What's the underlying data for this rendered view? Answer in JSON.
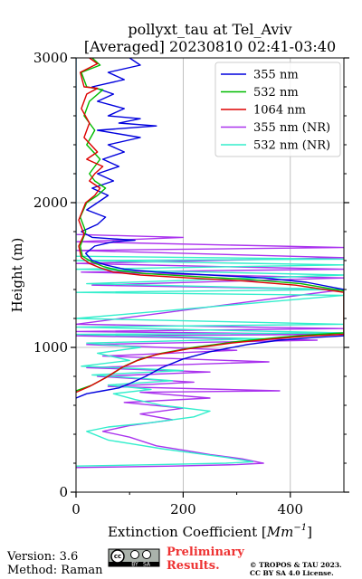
{
  "chart_data": {
    "type": "line",
    "title_line1": "pollyxt_tau at Tel_Aviv",
    "title_line2": "[Averaged] 20230810 02:41-03:40",
    "xlabel_text": "Extinction Coefficient [",
    "xlabel_unit": "Mm",
    "xlabel_exp": "−1",
    "xlabel_close": "]",
    "ylabel": "Height (m)",
    "xlim": [
      0,
      500
    ],
    "ylim": [
      0,
      3000
    ],
    "xticks": [
      0,
      200,
      400
    ],
    "yticks": [
      0,
      1000,
      2000,
      3000
    ],
    "grid": true,
    "legend_position": "top-right",
    "series": [
      {
        "name": "355 nm",
        "color": "#0000dd",
        "points": [
          [
            0,
            650
          ],
          [
            20,
            680
          ],
          [
            50,
            700
          ],
          [
            80,
            720
          ],
          [
            100,
            750
          ],
          [
            130,
            800
          ],
          [
            160,
            860
          ],
          [
            200,
            920
          ],
          [
            250,
            970
          ],
          [
            320,
            1020
          ],
          [
            380,
            1050
          ],
          [
            450,
            1070
          ],
          [
            500,
            1080
          ],
          [
            500,
            1400
          ],
          [
            430,
            1450
          ],
          [
            350,
            1480
          ],
          [
            250,
            1500
          ],
          [
            150,
            1520
          ],
          [
            90,
            1540
          ],
          [
            55,
            1570
          ],
          [
            30,
            1600
          ],
          [
            18,
            1650
          ],
          [
            35,
            1700
          ],
          [
            70,
            1730
          ],
          [
            110,
            1740
          ],
          [
            30,
            1760
          ],
          [
            10,
            1800
          ],
          [
            40,
            1850
          ],
          [
            55,
            1900
          ],
          [
            20,
            1950
          ],
          [
            40,
            2000
          ],
          [
            60,
            2050
          ],
          [
            30,
            2100
          ],
          [
            70,
            2150
          ],
          [
            40,
            2200
          ],
          [
            80,
            2250
          ],
          [
            50,
            2300
          ],
          [
            90,
            2350
          ],
          [
            60,
            2400
          ],
          [
            120,
            2450
          ],
          [
            40,
            2500
          ],
          [
            150,
            2530
          ],
          [
            80,
            2550
          ],
          [
            120,
            2580
          ],
          [
            60,
            2600
          ],
          [
            90,
            2650
          ],
          [
            40,
            2700
          ],
          [
            70,
            2750
          ],
          [
            30,
            2800
          ],
          [
            90,
            2850
          ],
          [
            60,
            2900
          ],
          [
            120,
            2950
          ],
          [
            100,
            3000
          ]
        ]
      },
      {
        "name": "532 nm",
        "color": "#00bb00",
        "points": [
          [
            0,
            700
          ],
          [
            30,
            740
          ],
          [
            60,
            800
          ],
          [
            90,
            870
          ],
          [
            120,
            920
          ],
          [
            160,
            960
          ],
          [
            220,
            1000
          ],
          [
            300,
            1040
          ],
          [
            380,
            1070
          ],
          [
            450,
            1090
          ],
          [
            500,
            1100
          ],
          [
            500,
            1390
          ],
          [
            420,
            1440
          ],
          [
            320,
            1470
          ],
          [
            220,
            1490
          ],
          [
            130,
            1510
          ],
          [
            80,
            1530
          ],
          [
            50,
            1560
          ],
          [
            30,
            1590
          ],
          [
            12,
            1630
          ],
          [
            8,
            1700
          ],
          [
            18,
            1800
          ],
          [
            8,
            1900
          ],
          [
            20,
            2000
          ],
          [
            40,
            2050
          ],
          [
            55,
            2100
          ],
          [
            35,
            2150
          ],
          [
            25,
            2200
          ],
          [
            45,
            2300
          ],
          [
            20,
            2400
          ],
          [
            35,
            2500
          ],
          [
            15,
            2600
          ],
          [
            25,
            2700
          ],
          [
            50,
            2780
          ],
          [
            20,
            2800
          ],
          [
            10,
            2900
          ],
          [
            45,
            2950
          ],
          [
            30,
            3000
          ]
        ]
      },
      {
        "name": "1064 nm",
        "color": "#dd0000",
        "points": [
          [
            0,
            690
          ],
          [
            25,
            730
          ],
          [
            55,
            790
          ],
          [
            85,
            860
          ],
          [
            115,
            910
          ],
          [
            150,
            950
          ],
          [
            210,
            990
          ],
          [
            290,
            1030
          ],
          [
            370,
            1060
          ],
          [
            440,
            1080
          ],
          [
            500,
            1090
          ],
          [
            500,
            1380
          ],
          [
            410,
            1430
          ],
          [
            310,
            1460
          ],
          [
            210,
            1480
          ],
          [
            120,
            1500
          ],
          [
            70,
            1520
          ],
          [
            45,
            1550
          ],
          [
            25,
            1580
          ],
          [
            10,
            1620
          ],
          [
            5,
            1700
          ],
          [
            15,
            1780
          ],
          [
            5,
            1880
          ],
          [
            18,
            2000
          ],
          [
            35,
            2050
          ],
          [
            45,
            2100
          ],
          [
            25,
            2150
          ],
          [
            35,
            2200
          ],
          [
            50,
            2250
          ],
          [
            20,
            2300
          ],
          [
            40,
            2350
          ],
          [
            15,
            2450
          ],
          [
            25,
            2550
          ],
          [
            10,
            2650
          ],
          [
            20,
            2750
          ],
          [
            40,
            2790
          ],
          [
            15,
            2800
          ],
          [
            8,
            2900
          ],
          [
            40,
            2960
          ],
          [
            25,
            3000
          ]
        ]
      },
      {
        "name": "355 nm (NR)",
        "color": "#aa33ee",
        "points": [
          [
            0,
            170
          ],
          [
            180,
            180
          ],
          [
            300,
            190
          ],
          [
            350,
            200
          ],
          [
            310,
            230
          ],
          [
            250,
            260
          ],
          [
            200,
            290
          ],
          [
            150,
            320
          ],
          [
            100,
            380
          ],
          [
            50,
            420
          ],
          [
            100,
            460
          ],
          [
            180,
            500
          ],
          [
            120,
            540
          ],
          [
            200,
            580
          ],
          [
            90,
            620
          ],
          [
            250,
            650
          ],
          [
            120,
            690
          ],
          [
            380,
            700
          ],
          [
            60,
            730
          ],
          [
            220,
            760
          ],
          [
            40,
            800
          ],
          [
            250,
            830
          ],
          [
            20,
            860
          ],
          [
            360,
            900
          ],
          [
            50,
            940
          ],
          [
            300,
            980
          ],
          [
            20,
            1020
          ],
          [
            450,
            1050
          ],
          [
            0,
            1080
          ],
          [
            500,
            1090
          ],
          [
            0,
            1110
          ],
          [
            500,
            1130
          ],
          [
            0,
            1160
          ],
          [
            500,
            1400
          ],
          [
            30,
            1430
          ],
          [
            500,
            1480
          ],
          [
            10,
            1520
          ],
          [
            500,
            1540
          ],
          [
            0,
            1580
          ],
          [
            500,
            1620
          ],
          [
            0,
            1670
          ],
          [
            500,
            1690
          ],
          [
            0,
            1730
          ],
          [
            200,
            1760
          ],
          [
            0,
            1780
          ],
          [
            0,
            3000
          ]
        ]
      },
      {
        "name": "532 nm (NR)",
        "color": "#33eecc",
        "points": [
          [
            0,
            180
          ],
          [
            150,
            190
          ],
          [
            280,
            200
          ],
          [
            330,
            210
          ],
          [
            280,
            240
          ],
          [
            220,
            270
          ],
          [
            160,
            300
          ],
          [
            110,
            330
          ],
          [
            60,
            360
          ],
          [
            20,
            420
          ],
          [
            60,
            450
          ],
          [
            140,
            480
          ],
          [
            220,
            520
          ],
          [
            250,
            560
          ],
          [
            160,
            600
          ],
          [
            110,
            640
          ],
          [
            70,
            680
          ],
          [
            140,
            710
          ],
          [
            60,
            740
          ],
          [
            180,
            770
          ],
          [
            30,
            810
          ],
          [
            200,
            840
          ],
          [
            10,
            870
          ],
          [
            100,
            910
          ],
          [
            40,
            960
          ],
          [
            120,
            1000
          ],
          [
            20,
            1030
          ],
          [
            350,
            1060
          ],
          [
            0,
            1090
          ],
          [
            500,
            1100
          ],
          [
            0,
            1140
          ],
          [
            500,
            1160
          ],
          [
            0,
            1200
          ],
          [
            500,
            1360
          ],
          [
            0,
            1380
          ],
          [
            500,
            1400
          ],
          [
            20,
            1440
          ],
          [
            500,
            1500
          ],
          [
            0,
            1540
          ],
          [
            500,
            1570
          ],
          [
            0,
            1600
          ],
          [
            500,
            1610
          ],
          [
            0,
            1630
          ],
          [
            0,
            3000
          ]
        ]
      }
    ]
  },
  "footer": {
    "version": "Version: 3.6",
    "method": "Method: Raman",
    "prelim_line1": "Preliminary",
    "prelim_line2": "Results.",
    "copyright_line1": "© TROPOS & TAU 2023.",
    "copyright_line2": "CC BY SA 4.0 License.",
    "badge_cc": "cc",
    "badge_by": "BY",
    "badge_sa": "SA"
  }
}
